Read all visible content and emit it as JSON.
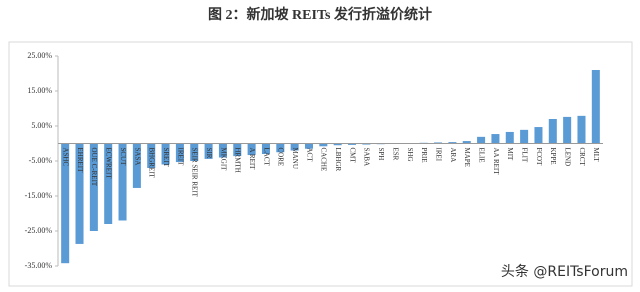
{
  "chart_data": {
    "type": "bar",
    "title": "图 2：新加坡 REITs 发行折溢价统计",
    "watermark": "头条 @REITsForum",
    "categories": [
      "ASHC",
      "EHREIT",
      "OUE C-REIT",
      "ECWREIT",
      "SCUT",
      "SASA",
      "BHGREIT",
      "SREIT",
      "IREIT",
      "SEIR SEIR REIT",
      "SIR",
      "MKGIT",
      "HRMTH",
      "A REIT",
      "LACT",
      "CORE",
      "MANU",
      "ACT",
      "CACHE",
      "LBHGR",
      "CMT",
      "SABA",
      "SPH",
      "ESR",
      "SHG",
      "PRIE",
      "IREI",
      "ARA",
      "MAPE",
      "ELIE",
      "AA REIT",
      "MIT",
      "FLIT",
      "FCOT",
      "KPPE",
      "LEND",
      "CRCT",
      "MLT"
    ],
    "values": [
      -34.2,
      -28.7,
      -25,
      -23,
      -22,
      -12.7,
      -7,
      -6,
      -5.3,
      -5,
      -4.4,
      -4,
      -3.6,
      -3.3,
      -3,
      -2.5,
      -2,
      -1.5,
      -0.8,
      -0.5,
      -0.4,
      -0.3,
      -0.2,
      -0.1,
      0.1,
      0.2,
      0.3,
      0.4,
      0.7,
      1.9,
      2.7,
      3.3,
      3.9,
      4.7,
      7,
      7.6,
      7.9,
      21
    ],
    "color": "#5b9bd5",
    "ylim": [
      -35,
      25
    ],
    "yticks": [
      {
        "value": 25,
        "label": "25.00%"
      },
      {
        "value": 15,
        "label": "15.00%"
      },
      {
        "value": 5,
        "label": "5.00%"
      },
      {
        "value": -5,
        "label": "-5.00%"
      },
      {
        "value": -15,
        "label": "-15.00%"
      },
      {
        "value": -25,
        "label": "-25.00%"
      },
      {
        "value": -35,
        "label": "-35.00%"
      }
    ],
    "grid": false
  }
}
